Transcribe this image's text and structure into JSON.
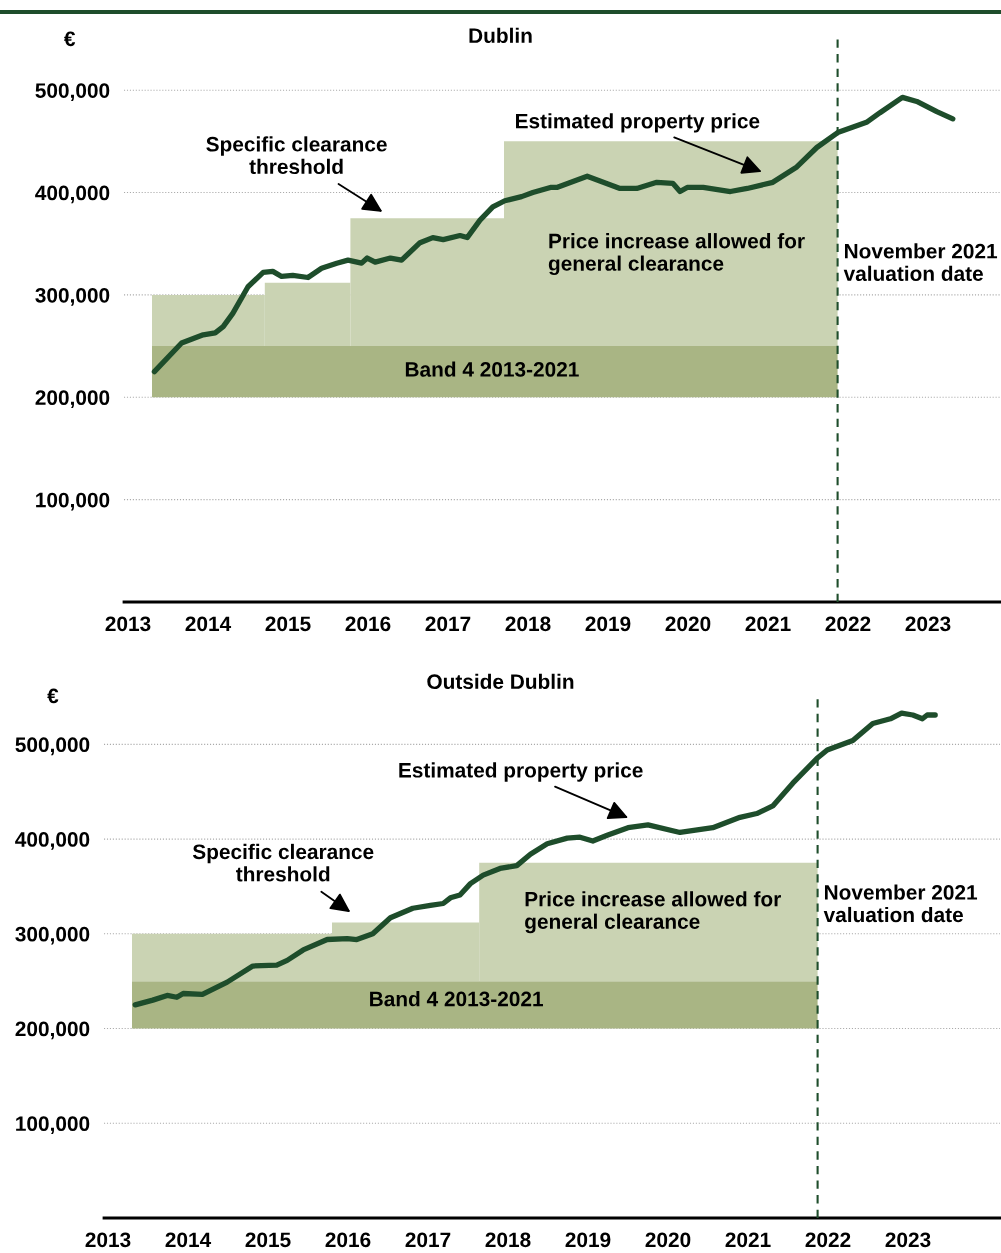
{
  "chart_data": [
    {
      "type": "line",
      "title": "Dublin",
      "ylabel": "€",
      "xlim": [
        2012.95,
        2023.9
      ],
      "xticks": [
        2013,
        2014,
        2015,
        2016,
        2017,
        2018,
        2019,
        2020,
        2021,
        2022,
        2023
      ],
      "ylim": [
        0,
        550000
      ],
      "yticks": [
        {
          "value": 100000,
          "label": "100,000"
        },
        {
          "value": 200000,
          "label": "200,000"
        },
        {
          "value": 300000,
          "label": "300,000"
        },
        {
          "value": 400000,
          "label": "400,000"
        },
        {
          "value": 500000,
          "label": "500,000"
        }
      ],
      "grid": "y",
      "series": [
        {
          "type": "histogram",
          "color": "#a9b584",
          "bins": [
            2013.3,
            2021.87
          ],
          "values": [
            50000
          ],
          "base": [
            200000
          ]
        },
        {
          "type": "histogram",
          "color": "#cad3b3",
          "bins": [
            2013.3,
            2014.71,
            2015.78,
            2017.7,
            2021.87
          ],
          "values": [
            50000,
            62000,
            125000,
            200000
          ],
          "base": [
            250000,
            250000,
            250000,
            250000
          ]
        },
        {
          "type": "line",
          "color": "#1e4d2b",
          "x": [
            2013.33,
            2013.67,
            2013.94,
            2014.09,
            2014.19,
            2014.31,
            2014.5,
            2014.69,
            2014.81,
            2014.92,
            2015.06,
            2015.25,
            2015.42,
            2015.61,
            2015.75,
            2015.92,
            2015.99,
            2016.09,
            2016.28,
            2016.42,
            2016.65,
            2016.81,
            2016.94,
            2017.15,
            2017.24,
            2017.4,
            2017.56,
            2017.71,
            2017.92,
            2018.06,
            2018.28,
            2018.36,
            2018.74,
            2019.15,
            2019.36,
            2019.61,
            2019.81,
            2019.9,
            2019.99,
            2020.19,
            2020.53,
            2020.74,
            2021.06,
            2021.36,
            2021.61,
            2021.88,
            2022.24,
            2022.4,
            2022.68,
            2022.86,
            2023.11,
            2023.31
          ],
          "values": [
            225000,
            253000,
            261000,
            263000,
            269000,
            282000,
            308000,
            322000,
            323000,
            318000,
            319000,
            317000,
            326000,
            331000,
            334000,
            331000,
            336000,
            332000,
            336000,
            334000,
            351000,
            356000,
            354000,
            358000,
            356000,
            373000,
            386000,
            392000,
            396000,
            400000,
            405000,
            405000,
            416000,
            404000,
            404000,
            410000,
            409000,
            401000,
            405000,
            405000,
            401000,
            404000,
            410000,
            425000,
            444000,
            459000,
            469000,
            478000,
            493000,
            489000,
            479000,
            472000
          ]
        }
      ],
      "ref_lines": [
        {
          "axis": "x",
          "value": 2021.87,
          "label": "November 2021\nvaluation date",
          "color": "#1e4d2b",
          "line_style": "dashed"
        }
      ],
      "annotations": [
        "Specific clearance\nthreshold",
        "Estimated property price",
        "Price increase allowed for\ngeneral clearance",
        "Band 4 2013-2021"
      ]
    },
    {
      "type": "line",
      "title": "Outside Dublin",
      "ylabel": "€",
      "xlim": [
        2012.95,
        2024.15
      ],
      "xticks": [
        2013,
        2014,
        2015,
        2016,
        2017,
        2018,
        2019,
        2020,
        2021,
        2022,
        2023
      ],
      "ylim": [
        0,
        550000
      ],
      "yticks": [
        {
          "value": 100000,
          "label": "100,000"
        },
        {
          "value": 200000,
          "label": "200,000"
        },
        {
          "value": 300000,
          "label": "300,000"
        },
        {
          "value": 400000,
          "label": "400,000"
        },
        {
          "value": 500000,
          "label": "500,000"
        }
      ],
      "grid": "y",
      "series": [
        {
          "type": "histogram",
          "color": "#a9b584",
          "bins": [
            2013.3,
            2021.87
          ],
          "values": [
            50000
          ],
          "base": [
            200000
          ]
        },
        {
          "type": "histogram",
          "color": "#cad3b3",
          "bins": [
            2013.3,
            2015.8,
            2017.64,
            2021.87
          ],
          "values": [
            50000,
            62000,
            125000
          ],
          "base": [
            250000,
            250000,
            250000
          ]
        },
        {
          "type": "line",
          "color": "#1e4d2b",
          "x": [
            2013.34,
            2013.56,
            2013.74,
            2013.86,
            2013.94,
            2014.18,
            2014.49,
            2014.81,
            2015.11,
            2015.24,
            2015.44,
            2015.74,
            2015.99,
            2016.11,
            2016.31,
            2016.53,
            2016.81,
            2017.03,
            2017.19,
            2017.28,
            2017.4,
            2017.53,
            2017.69,
            2017.9,
            2018.11,
            2018.28,
            2018.49,
            2018.74,
            2018.9,
            2019.06,
            2019.24,
            2019.5,
            2019.75,
            2020.15,
            2020.56,
            2020.9,
            2021.11,
            2021.31,
            2021.56,
            2021.86,
            2021.99,
            2022.31,
            2022.56,
            2022.78,
            2022.92,
            2023.06,
            2023.18,
            2023.24,
            2023.34
          ],
          "values": [
            225000,
            230000,
            235000,
            233000,
            237000,
            236000,
            249000,
            266000,
            267000,
            272000,
            283000,
            294000,
            295000,
            294000,
            300000,
            317000,
            327000,
            330000,
            332000,
            338000,
            341000,
            353000,
            362000,
            369000,
            372000,
            384000,
            395000,
            401000,
            402000,
            398000,
            404000,
            412000,
            415000,
            407000,
            412000,
            423000,
            427000,
            435000,
            459000,
            485000,
            494000,
            504000,
            522000,
            527000,
            533000,
            531000,
            527000,
            531000,
            531000
          ]
        }
      ],
      "ref_lines": [
        {
          "axis": "x",
          "value": 2021.87,
          "label": "November 2021\nvaluation date",
          "color": "#1e4d2b",
          "line_style": "dashed"
        }
      ],
      "annotations": [
        "Specific clearance\nthreshold",
        "Estimated property price",
        "Price increase allowed for\ngeneral clearance",
        "Band 4 2013-2021"
      ]
    }
  ]
}
